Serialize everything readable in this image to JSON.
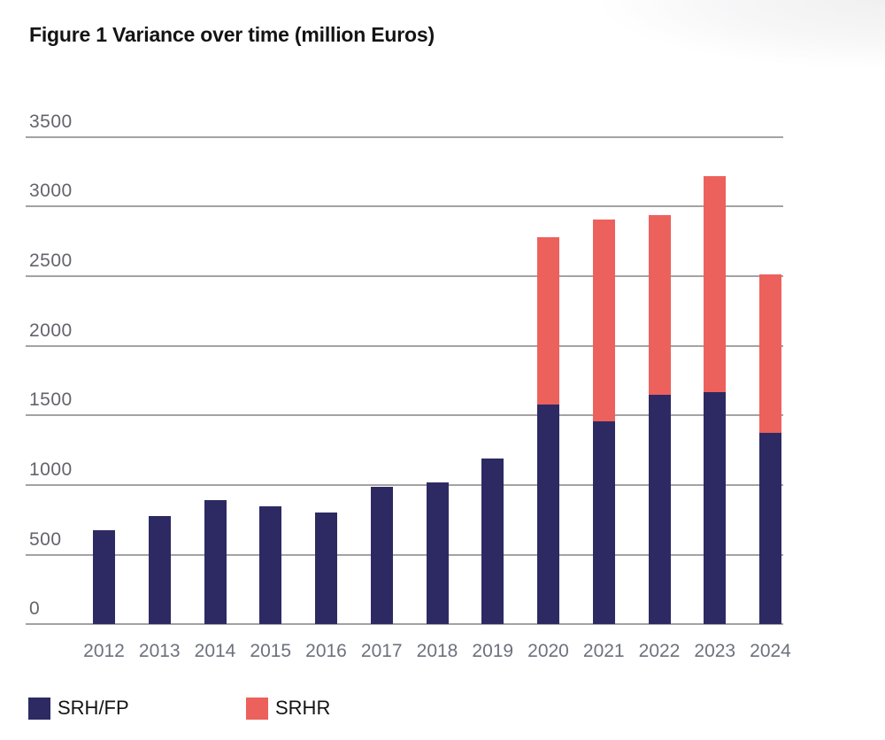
{
  "page": {
    "title": "Figure 1 Variance over time (million Euros)"
  },
  "legend": {
    "items": [
      {
        "label": "SRH/FP",
        "color": "#2d2a63"
      },
      {
        "label": "SRHR",
        "color": "#ec615c"
      }
    ]
  },
  "chart_data": {
    "type": "bar",
    "stacked": true,
    "title": "Figure 1 Variance over time (million Euros)",
    "categories": [
      "2012",
      "2013",
      "2014",
      "2015",
      "2016",
      "2017",
      "2018",
      "2019",
      "2020",
      "2021",
      "2022",
      "2023",
      "2024"
    ],
    "series": [
      {
        "name": "SRH/FP",
        "color": "#2d2a63",
        "values": [
          675,
          775,
          895,
          850,
          800,
          985,
          1020,
          1190,
          1575,
          1460,
          1650,
          1665,
          1375
        ]
      },
      {
        "name": "SRHR",
        "color": "#ec615c",
        "values": [
          0,
          0,
          0,
          0,
          0,
          0,
          0,
          0,
          1205,
          1445,
          1285,
          1555,
          1140
        ]
      }
    ],
    "stack_totals": [
      675,
      775,
      895,
      850,
      800,
      985,
      1020,
      1190,
      2780,
      2905,
      2935,
      3220,
      2515
    ],
    "xlabel": "",
    "ylabel": "",
    "ylim": [
      0,
      3500
    ],
    "yticks": [
      0,
      500,
      1000,
      1500,
      2000,
      2500,
      3000,
      3500
    ],
    "grid": "horizontal",
    "gridline_color": "#a3a3a3",
    "y_tick_label_color": "#63636d",
    "x_tick_label_color": "#6d717e",
    "legend_position": "bottom-left"
  }
}
